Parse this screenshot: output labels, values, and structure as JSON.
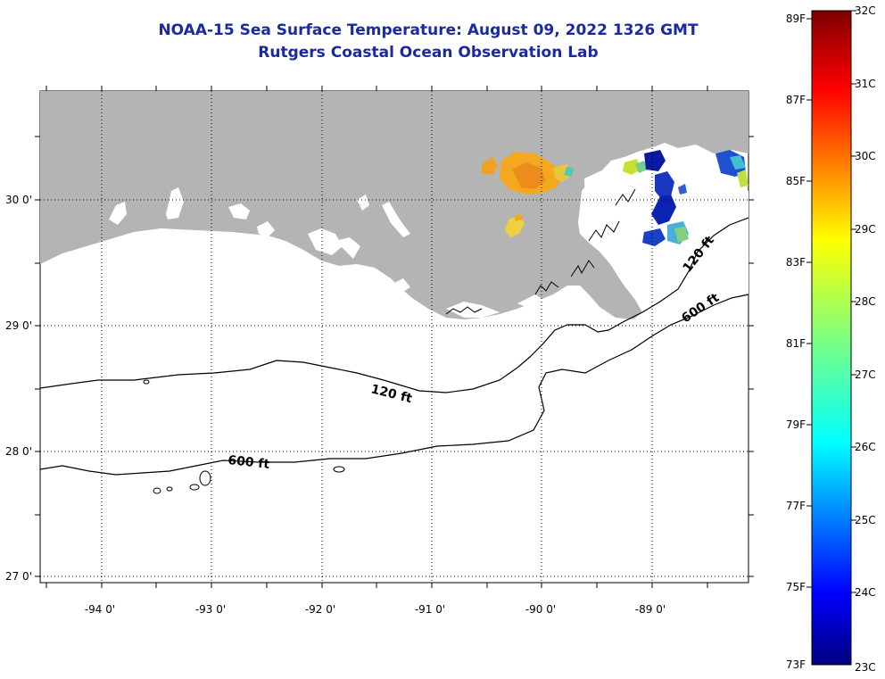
{
  "header": {
    "title": "NOAA-15 Sea Surface Temperature:  August 09, 2022 1326 GMT",
    "subtitle": "Rutgers Coastal Ocean Observation Lab"
  },
  "map": {
    "lon_labels": [
      "-94 0'",
      "-93 0'",
      "-92 0'",
      "-91 0'",
      "-90 0'",
      "-89 0'"
    ],
    "lat_labels": [
      "30 0'",
      "29 0'",
      "28 0'",
      "27 0'"
    ],
    "contours": {
      "shallow_label": "120 ft",
      "deep_label": "600 ft"
    },
    "colors": {
      "land": "#b4b4b4",
      "water": "#ffffff"
    }
  },
  "colorbar": {
    "fahrenheit_labels": [
      "89F",
      "87F",
      "85F",
      "83F",
      "81F",
      "79F",
      "77F",
      "75F",
      "73F"
    ],
    "celsius_labels": [
      "32C",
      "31C",
      "30C",
      "29C",
      "28C",
      "27C",
      "26C",
      "25C",
      "24C",
      "23C"
    ],
    "colormap": "jet",
    "min_c": 23,
    "max_c": 32
  }
}
